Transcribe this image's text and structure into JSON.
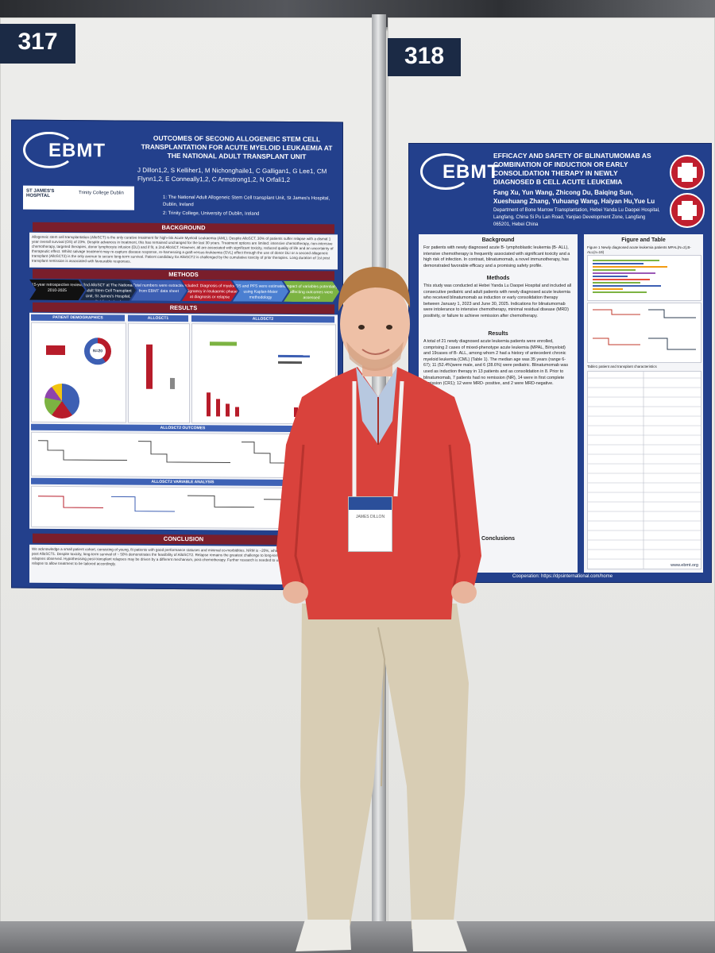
{
  "booths": {
    "left_number": "317",
    "right_number": "318"
  },
  "poster_317": {
    "logo": "EBMT",
    "title": "OUTCOMES OF SECOND ALLOGENEIC STEM CELL TRANSPLANTATION FOR ACUTE MYELOID LEUKAEMIA AT THE NATIONAL ADULT TRANSPLANT UNIT",
    "authors": "J Dillon1,2, S Kelliher1, M Nichonghaile1, C Galligan1, G Lee1, CM Flynn1,2, E Conneally1,2, C Armstrong1,2, N Orfali1,2",
    "affiliation_1": "1: The National Adult Allogeneic Stem Cell transplant Unit, St James's Hospital, Dublin, Ireland",
    "affiliation_2": "2: Trinity College, University of Dublin, Ireland",
    "institution_1": "ST JAMES'S HOSPITAL",
    "institution_2": "Trinity College Dublin",
    "sections": {
      "background": "BACKGROUND",
      "methods": "METHODS",
      "results": "RESULTS",
      "conclusion": "CONCLUSION"
    },
    "background_text": "Allogeneic stem cell transplantation (AlloSCT) is the only curative treatment for high-risk Acute Myeloid Leukaemia (AML). Despite AlloSCT, 30% of patients suffer relapse with a dismal 1 year overall survival (OS) of 23%. Despite advances in treatment, this has remained unchanged for the last 30 years. Treatment options are limited: intensive chemotherapy, non-intensive chemotherapy, targeted therapies, donor lymphocyte infusion (DLI) and if fit, a 2nd AlloSCT. However, all are associated with significant toxicity, reduced quality of life and an uncertainty of therapeutic effect. Whilst salvage treatment may re-capture disease response, re-harnessing a graft-versus-leukaemia (GVL) effect through the use of donor DLI or a second allogeneic transplant (AlloSCT2) is the only avenue to secure long-term survival. Patient candidacy for AlloSCT2 is challenged by the cumulative toxicity of prior therapies. Long duration of 1st post transplant remission is associated with favourable responses.",
    "method_steps": [
      "15-year retrospective review, 2010-2025",
      "2nd AlloSCT at The National Adult Stem Cell Transplant Unit, St James's Hospital, Dublin, Ireland",
      "Total numbers were extracted from EBMT data sheet",
      "Included: Diagnosis of myeloid malignancy in leukaemic phase at diagnosis or relapse",
      "OS and PFS were estimated using Kaplan-Meier methodology",
      "Impact of variables potentially affecting outcomes were assessed"
    ],
    "results_panels": [
      "PATIENT DEMOGRAPHICS",
      "ALLOSCT1",
      "ALLOSCT2",
      "ALLOSCT2 OUTCOMES",
      "ALLOSCT2 VARIABLE ANALYSIS"
    ],
    "n_label": "N=20",
    "conclusion_text": "We acknowledge a small patient cohort, consisting of young, fit patients with good performance statuses and minimal co-morbidities. NRM is ~20%, which is higher than <10% observed post AlloSCT1. Despite toxicity, long-term survival of ~ 50% demonstrates the feasibility of AlloSCT2. Relapse remains the greatest challenge to long-term survival with both early and late relapses observed. Hypothesising post-transplant relapses may be driven by a different mechanism, post-chemotherapy. Further research is needed to understand these mechanisms of relapse to allow treatment to be tailored accordingly."
  },
  "poster_318": {
    "logo": "EBMT",
    "title": "EFFICACY AND SAFETY OF BLINATUMOMAB AS COMBINATION OF INDUCTION OR EARLY CONSOLIDATION THERAPY IN NEWLY DIAGNOSED B CELL ACUTE LEUKEMIA",
    "authors": "Fang Xu, Yun Wang, Zhicong Du, Baiqing Sun, Xueshuang Zhang, Yuhuang Wang, Haiyan Hu,Yue Lu",
    "affiliation": "Department of Bone Marrow Transplantation, Hebei Yanda Lu Daopei Hospital, Langfang, China Si Pu Lan Road, Yanjiao Development Zone, Langfang 065201, Hebei China",
    "col1": {
      "background_head": "Background",
      "background_text": "For patients with newly diagnosed acute B- lymphoblastic leukemia (B- ALL), intensive chemotherapy is frequently associated with significant toxicity and a high risk of infection. In contrast, blinatumomab, a novel immunotherapy, has demonstrated favorable efficacy and a promising safety profile.",
      "methods_head": "Methods",
      "methods_text": "This study was conducted at Hebei Yanda Lu Daopei Hospital and included all consecutive pediatric and adult patients with newly diagnosed acute leukemia who received blinatumomab as induction or early consolidation therapy between January 1, 2023 and June 30, 2025. Indications for blinatumomab were intolerance to intensive chemotherapy, minimal residual disease (MRD) positivity, or failure to achieve remission after chemotherapy.",
      "results_head": "Results",
      "results_text": "A total of 21 newly diagnosed acute leukemia patients were enrolled, comprising 2 cases of mixed-phenotype acute leukemia (MPAL, B/myeloid) and 19cases of B- ALL, among whom 2 had a history of antecedent chronic myeloid leukemia (CML) (Table 1). The median age was 35 years (range 6-67); 11 (52.4%)were male, and 6 (28.6%) were pediatric. Blinatumomab was used as induction therapy in 13 patients and as consolidation in 8. Prior to blinatumomab, 7 patients had no remission (NR), 14 were in first complete remission (CR1); 12 were MRD- positive, and 2 were MRD-negative.",
      "conclusions_head": "Conclusions"
    },
    "col2": {
      "figure_head": "Figure and Table",
      "figure_caption": "Figure 1 Newly diagnosed acute leukemia patients MPAL(N=2),B-ALL(n=19)",
      "table_caption": "Table1 patient and transplant characteristics"
    },
    "website": "www.ebmt.org",
    "cooperation": "Cooperation: https://dpsinternational.com/home"
  },
  "badge": {
    "name": "JAMES DILLON"
  },
  "colors": {
    "poster_blue": "#23408c",
    "section_red": "#7a1e2b",
    "sweater_red": "#d9423c",
    "trousers_khaki": "#d8cdb4"
  }
}
